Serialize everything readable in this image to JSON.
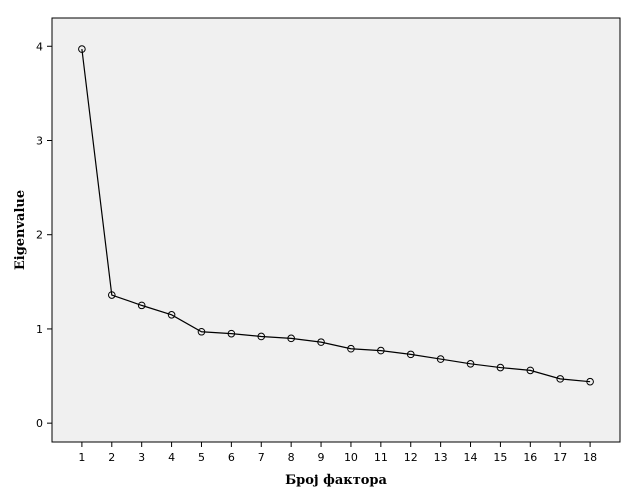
{
  "chart_data": {
    "type": "line",
    "title": "",
    "xlabel": "Број фактора",
    "ylabel": "Eigenvalue",
    "x": [
      1,
      2,
      3,
      4,
      5,
      6,
      7,
      8,
      9,
      10,
      11,
      12,
      13,
      14,
      15,
      16,
      17,
      18
    ],
    "x_ticks": [
      "1",
      "2",
      "3",
      "4",
      "5",
      "6",
      "7",
      "8",
      "9",
      "10",
      "11",
      "12",
      "13",
      "14",
      "15",
      "16",
      "17",
      "18"
    ],
    "y_ticks": [
      "0",
      "1",
      "2",
      "3",
      "4"
    ],
    "series": [
      {
        "values": [
          3.97,
          1.36,
          1.25,
          1.15,
          0.97,
          0.95,
          0.92,
          0.9,
          0.86,
          0.79,
          0.77,
          0.73,
          0.68,
          0.63,
          0.59,
          0.56,
          0.47,
          0.44
        ]
      }
    ],
    "xlim": [
      0,
      19
    ],
    "ylim": [
      -0.2,
      4.3
    ],
    "grid": false,
    "legend": "none",
    "marker": "open-circle",
    "colors": {
      "plot_background": "#f0f0f0",
      "line": "#000000",
      "marker_stroke": "#000000"
    }
  }
}
